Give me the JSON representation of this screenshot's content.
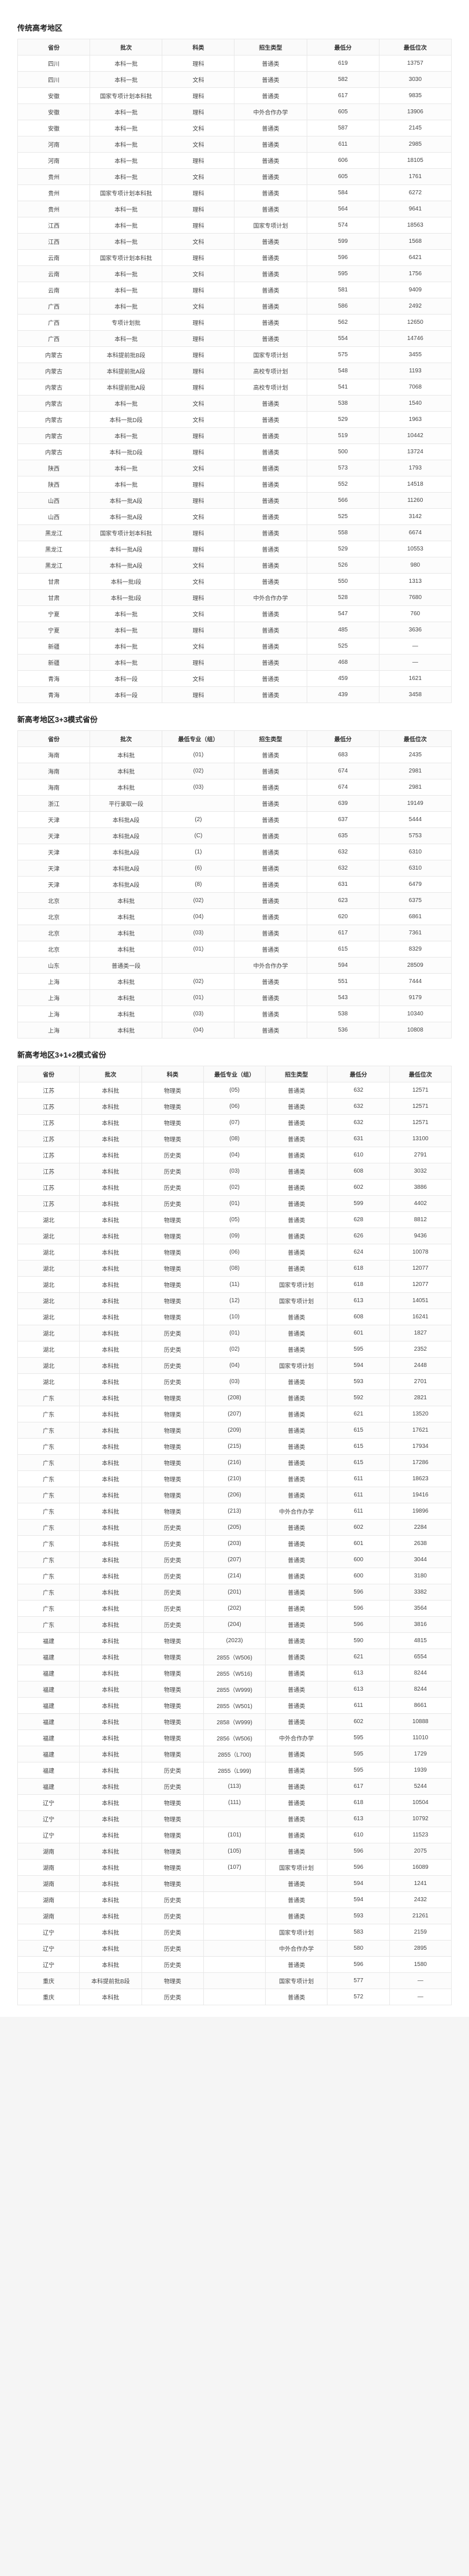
{
  "sections": [
    {
      "title": "传统高考地区",
      "columns": [
        "省份",
        "批次",
        "科类",
        "招生类型",
        "最低分",
        "最低位次"
      ],
      "rows": [
        [
          "四川",
          "本科一批",
          "理科",
          "普通类",
          "619",
          "13757"
        ],
        [
          "四川",
          "本科一批",
          "文科",
          "普通类",
          "582",
          "3030"
        ],
        [
          "安徽",
          "国家专项计划本科批",
          "理科",
          "普通类",
          "617",
          "9835"
        ],
        [
          "安徽",
          "本科一批",
          "理科",
          "中外合作办学",
          "605",
          "13906"
        ],
        [
          "安徽",
          "本科一批",
          "文科",
          "普通类",
          "587",
          "2145"
        ],
        [
          "河南",
          "本科一批",
          "文科",
          "普通类",
          "611",
          "2985"
        ],
        [
          "河南",
          "本科一批",
          "理科",
          "普通类",
          "606",
          "18105"
        ],
        [
          "贵州",
          "本科一批",
          "文科",
          "普通类",
          "605",
          "1761"
        ],
        [
          "贵州",
          "国家专项计划本科批",
          "理科",
          "普通类",
          "584",
          "6272"
        ],
        [
          "贵州",
          "本科一批",
          "理科",
          "普通类",
          "564",
          "9641"
        ],
        [
          "江西",
          "本科一批",
          "理科",
          "国家专项计划",
          "574",
          "18563"
        ],
        [
          "江西",
          "本科一批",
          "文科",
          "普通类",
          "599",
          "1568"
        ],
        [
          "云南",
          "国家专项计划本科批",
          "理科",
          "普通类",
          "596",
          "6421"
        ],
        [
          "云南",
          "本科一批",
          "文科",
          "普通类",
          "595",
          "1756"
        ],
        [
          "云南",
          "本科一批",
          "理科",
          "普通类",
          "581",
          "9409"
        ],
        [
          "广西",
          "本科一批",
          "文科",
          "普通类",
          "586",
          "2492"
        ],
        [
          "广西",
          "专项计划批",
          "理科",
          "普通类",
          "562",
          "12650"
        ],
        [
          "广西",
          "本科一批",
          "理科",
          "普通类",
          "554",
          "14746"
        ],
        [
          "内蒙古",
          "本科提前批B段",
          "理科",
          "国家专项计划",
          "575",
          "3455"
        ],
        [
          "内蒙古",
          "本科提前批A段",
          "理科",
          "高校专项计划",
          "548",
          "1193"
        ],
        [
          "内蒙古",
          "本科提前批A段",
          "理科",
          "高校专项计划",
          "541",
          "7068"
        ],
        [
          "内蒙古",
          "本科一批",
          "文科",
          "普通类",
          "538",
          "1540"
        ],
        [
          "内蒙古",
          "本科一批D段",
          "文科",
          "普通类",
          "529",
          "1963"
        ],
        [
          "内蒙古",
          "本科一批",
          "理科",
          "普通类",
          "519",
          "10442"
        ],
        [
          "内蒙古",
          "本科一批D段",
          "理科",
          "普通类",
          "500",
          "13724"
        ],
        [
          "陕西",
          "本科一批",
          "文科",
          "普通类",
          "573",
          "1793"
        ],
        [
          "陕西",
          "本科一批",
          "理科",
          "普通类",
          "552",
          "14518"
        ],
        [
          "山西",
          "本科一批A段",
          "理科",
          "普通类",
          "566",
          "11260"
        ],
        [
          "山西",
          "本科一批A段",
          "文科",
          "普通类",
          "525",
          "3142"
        ],
        [
          "黑龙江",
          "国家专项计划本科批",
          "理科",
          "普通类",
          "558",
          "6674"
        ],
        [
          "黑龙江",
          "本科一批A段",
          "理科",
          "普通类",
          "529",
          "10553"
        ],
        [
          "黑龙江",
          "本科一批A段",
          "文科",
          "普通类",
          "526",
          "980"
        ],
        [
          "甘肃",
          "本科一批I段",
          "文科",
          "普通类",
          "550",
          "1313"
        ],
        [
          "甘肃",
          "本科一批I段",
          "理科",
          "中外合作办学",
          "528",
          "7680"
        ],
        [
          "宁夏",
          "本科一批",
          "文科",
          "普通类",
          "547",
          "760"
        ],
        [
          "宁夏",
          "本科一批",
          "理科",
          "普通类",
          "485",
          "3636"
        ],
        [
          "新疆",
          "本科一批",
          "文科",
          "普通类",
          "525",
          "—"
        ],
        [
          "新疆",
          "本科一批",
          "理科",
          "普通类",
          "468",
          "—"
        ],
        [
          "青海",
          "本科一段",
          "文科",
          "普通类",
          "459",
          "1621"
        ],
        [
          "青海",
          "本科一段",
          "理科",
          "普通类",
          "439",
          "3458"
        ]
      ]
    },
    {
      "title": "新高考地区3+3模式省份",
      "columns": [
        "省份",
        "批次",
        "最低专业（组）",
        "招生类型",
        "最低分",
        "最低位次"
      ],
      "rows": [
        [
          "海南",
          "本科批",
          "(01)",
          "普通类",
          "683",
          "2435"
        ],
        [
          "海南",
          "本科批",
          "(02)",
          "普通类",
          "674",
          "2981"
        ],
        [
          "海南",
          "本科批",
          "(03)",
          "普通类",
          "674",
          "2981"
        ],
        [
          "浙江",
          "平行录取一段",
          "",
          "普通类",
          "639",
          "19149"
        ],
        [
          "天津",
          "本科批A段",
          "(2)",
          "普通类",
          "637",
          "5444"
        ],
        [
          "天津",
          "本科批A段",
          "(C)",
          "普通类",
          "635",
          "5753"
        ],
        [
          "天津",
          "本科批A段",
          "(1)",
          "普通类",
          "632",
          "6310"
        ],
        [
          "天津",
          "本科批A段",
          "(6)",
          "普通类",
          "632",
          "6310"
        ],
        [
          "天津",
          "本科批A段",
          "(8)",
          "普通类",
          "631",
          "6479"
        ],
        [
          "北京",
          "本科批",
          "(02)",
          "普通类",
          "623",
          "6375"
        ],
        [
          "北京",
          "本科批",
          "(04)",
          "普通类",
          "620",
          "6861"
        ],
        [
          "北京",
          "本科批",
          "(03)",
          "普通类",
          "617",
          "7361"
        ],
        [
          "北京",
          "本科批",
          "(01)",
          "普通类",
          "615",
          "8329"
        ],
        [
          "山东",
          "普通类一段",
          "",
          "中外合作办学",
          "594",
          "28509"
        ],
        [
          "上海",
          "本科批",
          "(02)",
          "普通类",
          "551",
          "7444"
        ],
        [
          "上海",
          "本科批",
          "(01)",
          "普通类",
          "543",
          "9179"
        ],
        [
          "上海",
          "本科批",
          "(03)",
          "普通类",
          "538",
          "10340"
        ],
        [
          "上海",
          "本科批",
          "(04)",
          "普通类",
          "536",
          "10808"
        ]
      ]
    },
    {
      "title": "新高考地区3+1+2模式省份",
      "columns": [
        "省份",
        "批次",
        "科类",
        "最低专业（组）",
        "招生类型",
        "最低分",
        "最低位次"
      ],
      "rows": [
        [
          "江苏",
          "本科批",
          "物理类",
          "(05)",
          "普通类",
          "632",
          "12571"
        ],
        [
          "江苏",
          "本科批",
          "物理类",
          "(06)",
          "普通类",
          "632",
          "12571"
        ],
        [
          "江苏",
          "本科批",
          "物理类",
          "(07)",
          "普通类",
          "632",
          "12571"
        ],
        [
          "江苏",
          "本科批",
          "物理类",
          "(08)",
          "普通类",
          "631",
          "13100"
        ],
        [
          "江苏",
          "本科批",
          "历史类",
          "(04)",
          "普通类",
          "610",
          "2791"
        ],
        [
          "江苏",
          "本科批",
          "历史类",
          "(03)",
          "普通类",
          "608",
          "3032"
        ],
        [
          "江苏",
          "本科批",
          "历史类",
          "(02)",
          "普通类",
          "602",
          "3886"
        ],
        [
          "江苏",
          "本科批",
          "历史类",
          "(01)",
          "普通类",
          "599",
          "4402"
        ],
        [
          "湖北",
          "本科批",
          "物理类",
          "(05)",
          "普通类",
          "628",
          "8812"
        ],
        [
          "湖北",
          "本科批",
          "物理类",
          "(09)",
          "普通类",
          "626",
          "9436"
        ],
        [
          "湖北",
          "本科批",
          "物理类",
          "(06)",
          "普通类",
          "624",
          "10078"
        ],
        [
          "湖北",
          "本科批",
          "物理类",
          "(08)",
          "普通类",
          "618",
          "12077"
        ],
        [
          "湖北",
          "本科批",
          "物理类",
          "(11)",
          "国家专项计划",
          "618",
          "12077"
        ],
        [
          "湖北",
          "本科批",
          "物理类",
          "(12)",
          "国家专项计划",
          "613",
          "14051"
        ],
        [
          "湖北",
          "本科批",
          "物理类",
          "(10)",
          "普通类",
          "608",
          "16241"
        ],
        [
          "湖北",
          "本科批",
          "历史类",
          "(01)",
          "普通类",
          "601",
          "1827"
        ],
        [
          "湖北",
          "本科批",
          "历史类",
          "(02)",
          "普通类",
          "595",
          "2352"
        ],
        [
          "湖北",
          "本科批",
          "历史类",
          "(04)",
          "国家专项计划",
          "594",
          "2448"
        ],
        [
          "湖北",
          "本科批",
          "历史类",
          "(03)",
          "普通类",
          "593",
          "2701"
        ],
        [
          "广东",
          "本科批",
          "物理类",
          "(208)",
          "普通类",
          "592",
          "2821"
        ],
        [
          "广东",
          "本科批",
          "物理类",
          "(207)",
          "普通类",
          "621",
          "13520"
        ],
        [
          "广东",
          "本科批",
          "物理类",
          "(209)",
          "普通类",
          "615",
          "17621"
        ],
        [
          "广东",
          "本科批",
          "物理类",
          "(215)",
          "普通类",
          "615",
          "17934"
        ],
        [
          "广东",
          "本科批",
          "物理类",
          "(216)",
          "普通类",
          "615",
          "17286"
        ],
        [
          "广东",
          "本科批",
          "物理类",
          "(210)",
          "普通类",
          "611",
          "18623"
        ],
        [
          "广东",
          "本科批",
          "物理类",
          "(206)",
          "普通类",
          "611",
          "19416"
        ],
        [
          "广东",
          "本科批",
          "物理类",
          "(213)",
          "中外合作办学",
          "611",
          "19896"
        ],
        [
          "广东",
          "本科批",
          "历史类",
          "(205)",
          "普通类",
          "602",
          "2284"
        ],
        [
          "广东",
          "本科批",
          "历史类",
          "(203)",
          "普通类",
          "601",
          "2638"
        ],
        [
          "广东",
          "本科批",
          "历史类",
          "(207)",
          "普通类",
          "600",
          "3044"
        ],
        [
          "广东",
          "本科批",
          "历史类",
          "(214)",
          "普通类",
          "600",
          "3180"
        ],
        [
          "广东",
          "本科批",
          "历史类",
          "(201)",
          "普通类",
          "596",
          "3382"
        ],
        [
          "广东",
          "本科批",
          "历史类",
          "(202)",
          "普通类",
          "596",
          "3564"
        ],
        [
          "广东",
          "本科批",
          "历史类",
          "(204)",
          "普通类",
          "596",
          "3816"
        ],
        [
          "福建",
          "本科批",
          "物理类",
          "(2023)",
          "普通类",
          "590",
          "4815"
        ],
        [
          "福建",
          "本科批",
          "物理类",
          "2855（W506)",
          "普通类",
          "621",
          "6554"
        ],
        [
          "福建",
          "本科批",
          "物理类",
          "2855（W516)",
          "普通类",
          "613",
          "8244"
        ],
        [
          "福建",
          "本科批",
          "物理类",
          "2855（W999)",
          "普通类",
          "613",
          "8244"
        ],
        [
          "福建",
          "本科批",
          "物理类",
          "2855（W501)",
          "普通类",
          "611",
          "8661"
        ],
        [
          "福建",
          "本科批",
          "物理类",
          "2858（W999)",
          "普通类",
          "602",
          "10888"
        ],
        [
          "福建",
          "本科批",
          "物理类",
          "2856（W506)",
          "中外合作办学",
          "595",
          "11010"
        ],
        [
          "福建",
          "本科批",
          "物理类",
          "2855（L700)",
          "普通类",
          "595",
          "1729"
        ],
        [
          "福建",
          "本科批",
          "历史类",
          "2855（L999)",
          "普通类",
          "595",
          "1939"
        ],
        [
          "福建",
          "本科批",
          "历史类",
          "(113)",
          "普通类",
          "617",
          "5244"
        ],
        [
          "辽宁",
          "本科批",
          "物理类",
          "(111)",
          "普通类",
          "618",
          "10504"
        ],
        [
          "辽宁",
          "本科批",
          "物理类",
          "",
          "普通类",
          "613",
          "10792"
        ],
        [
          "辽宁",
          "本科批",
          "物理类",
          "(101)",
          "普通类",
          "610",
          "11523"
        ],
        [
          "湖南",
          "本科批",
          "物理类",
          "(105)",
          "普通类",
          "596",
          "2075"
        ],
        [
          "湖南",
          "本科批",
          "物理类",
          "(107)",
          "国家专项计划",
          "596",
          "16089"
        ],
        [
          "湖南",
          "本科批",
          "物理类",
          "",
          "普通类",
          "594",
          "1241"
        ],
        [
          "湖南",
          "本科批",
          "历史类",
          "",
          "普通类",
          "594",
          "2432"
        ],
        [
          "湖南",
          "本科批",
          "历史类",
          "",
          "普通类",
          "593",
          "21261"
        ],
        [
          "辽宁",
          "本科批",
          "历史类",
          "",
          "国家专项计划",
          "583",
          "2159"
        ],
        [
          "辽宁",
          "本科批",
          "历史类",
          "",
          "中外合作办学",
          "580",
          "2895"
        ],
        [
          "辽宁",
          "本科批",
          "历史类",
          "",
          "普通类",
          "596",
          "1580"
        ],
        [
          "重庆",
          "本科提前批B段",
          "物理类",
          "",
          "国家专项计划",
          "577",
          "—"
        ],
        [
          "重庆",
          "本科批",
          "历史类",
          "",
          "普通类",
          "572",
          "—"
        ]
      ]
    }
  ]
}
